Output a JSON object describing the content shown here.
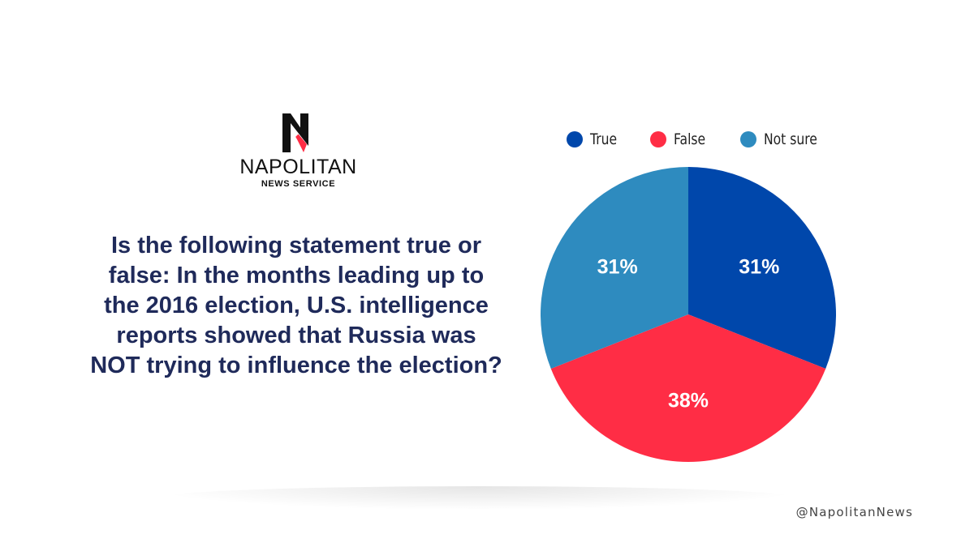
{
  "brand": {
    "name": "NAPOLITAN",
    "subtitle": "NEWS SERVICE",
    "handle": "@NapolitanNews"
  },
  "question": "Is the following statement true or false: In the months leading up to the 2016 election, U.S. intelligence reports showed that Russia was NOT trying to influence the election?",
  "colors": {
    "true": "#0047ab",
    "false": "#ff2d45",
    "not_sure": "#2e8bbf",
    "question_text": "#1f2a5a"
  },
  "chart_data": {
    "type": "pie",
    "title": "",
    "legend_position": "top",
    "slices": [
      {
        "label": "True",
        "value": 31,
        "display": "31%",
        "color": "#0047ab"
      },
      {
        "label": "False",
        "value": 38,
        "display": "38%",
        "color": "#ff2d45"
      },
      {
        "label": "Not sure",
        "value": 31,
        "display": "31%",
        "color": "#2e8bbf"
      }
    ]
  }
}
